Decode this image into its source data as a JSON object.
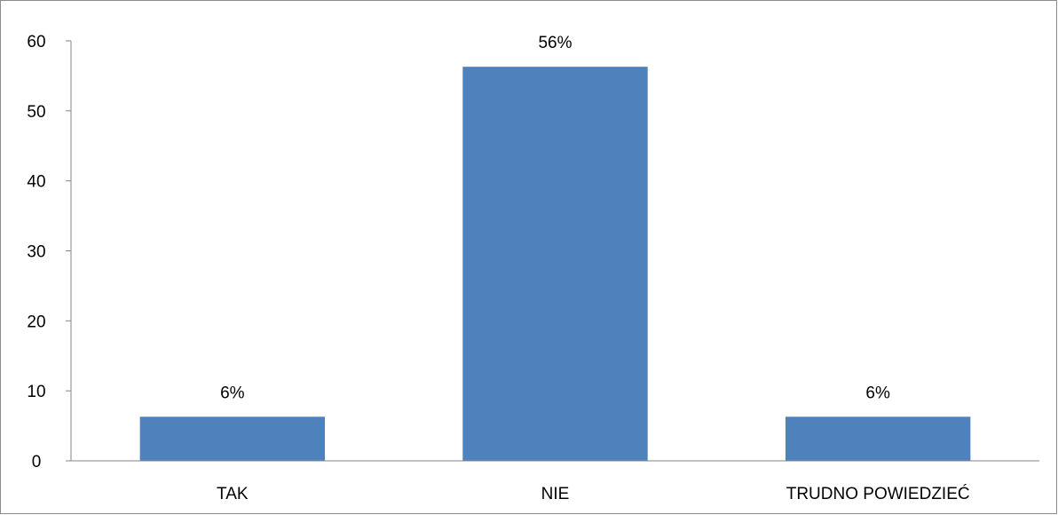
{
  "chart_data": {
    "type": "bar",
    "categories": [
      "TAK",
      "NIE",
      "TRUDNO POWIEDZIEĆ"
    ],
    "values": [
      6.3,
      56.3,
      6.3
    ],
    "data_labels": [
      "6%",
      "56%",
      "6%"
    ],
    "title": "",
    "xlabel": "",
    "ylabel": "",
    "ylim": [
      0,
      60
    ],
    "yticks": [
      "0",
      "10",
      "20",
      "30",
      "40",
      "50",
      "60"
    ],
    "grid": false,
    "legend": "none",
    "colors": {
      "bar": "#4f81bd",
      "axis": "#868686",
      "frame": "#8c8c8c"
    }
  }
}
